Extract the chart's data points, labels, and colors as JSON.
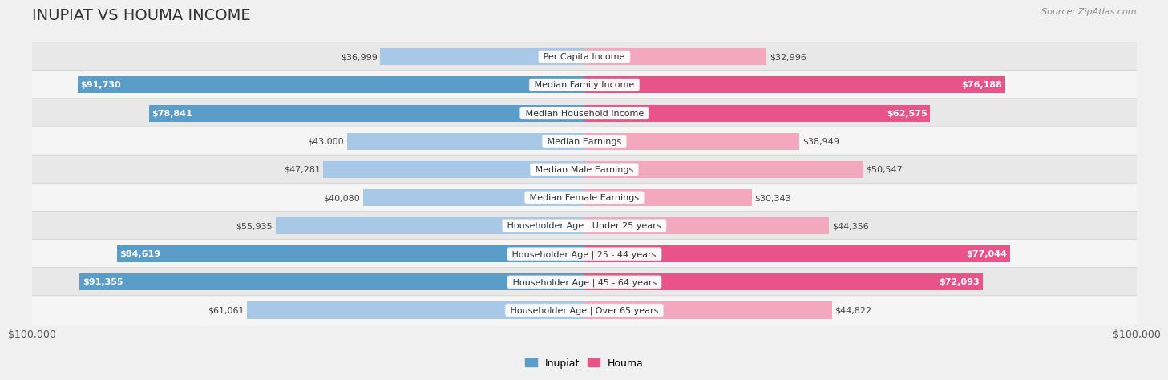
{
  "title": "Inupiat vs Houma Income",
  "source": "Source: ZipAtlas.com",
  "categories": [
    "Per Capita Income",
    "Median Family Income",
    "Median Household Income",
    "Median Earnings",
    "Median Male Earnings",
    "Median Female Earnings",
    "Householder Age | Under 25 years",
    "Householder Age | 25 - 44 years",
    "Householder Age | 45 - 64 years",
    "Householder Age | Over 65 years"
  ],
  "inupiat_values": [
    36999,
    91730,
    78841,
    43000,
    47281,
    40080,
    55935,
    84619,
    91355,
    61061
  ],
  "houma_values": [
    32996,
    76188,
    62575,
    38949,
    50547,
    30343,
    44356,
    77044,
    72093,
    44822
  ],
  "inupiat_labels": [
    "$36,999",
    "$91,730",
    "$78,841",
    "$43,000",
    "$47,281",
    "$40,080",
    "$55,935",
    "$84,619",
    "$91,355",
    "$61,061"
  ],
  "houma_labels": [
    "$32,996",
    "$76,188",
    "$62,575",
    "$38,949",
    "$50,547",
    "$30,343",
    "$44,356",
    "$77,044",
    "$72,093",
    "$44,822"
  ],
  "inupiat_dark_indices": [
    1,
    2,
    7,
    8
  ],
  "houma_dark_indices": [
    1,
    2,
    7,
    8
  ],
  "max_value": 100000,
  "inupiat_color_light": "#a8c8e8",
  "inupiat_color_dark": "#5b9dc9",
  "houma_color_light": "#f4a8c0",
  "houma_color_dark": "#e8538a",
  "bg_color": "#f0f0f0",
  "row_colors": [
    "#e8e8e8",
    "#f5f5f5"
  ],
  "bar_height": 0.6,
  "xlabel_left": "$100,000",
  "xlabel_right": "$100,000",
  "legend_inupiat": "Inupiat",
  "legend_houma": "Houma",
  "title_fontsize": 14,
  "label_fontsize": 8,
  "category_fontsize": 8
}
